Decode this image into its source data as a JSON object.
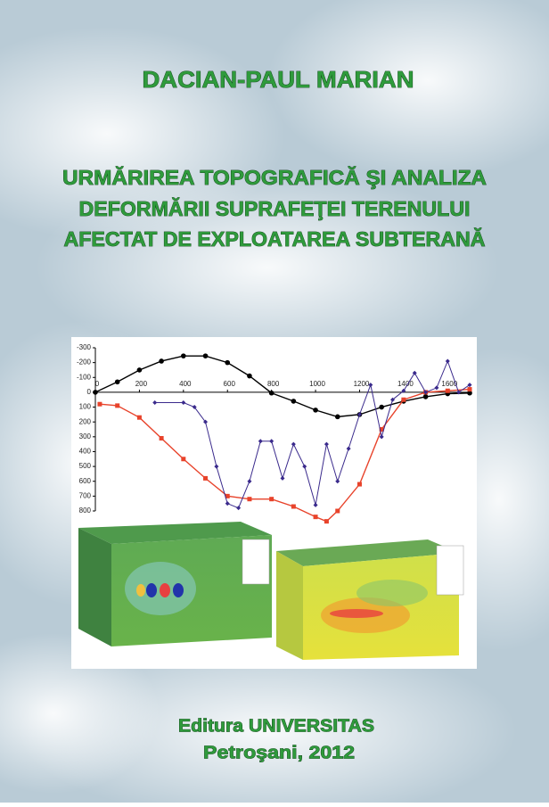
{
  "header": {
    "author": "DACIAN-PAUL MARIAN"
  },
  "title": {
    "lines": [
      "URMĂRIREA TOPOGRAFICĂ ŞI ANALIZA",
      "DEFORMĂRII SUPRAFEŢEI TERENULUI",
      "AFECTAT DE EXPLOATAREA SUBTERANĂ"
    ]
  },
  "chart_data": {
    "type": "line",
    "xlim": [
      0,
      1700
    ],
    "xticks": [
      0,
      200,
      400,
      600,
      800,
      1000,
      1200,
      1400,
      1600
    ],
    "ylim": [
      -300,
      800
    ],
    "yticks": [
      -300,
      -200,
      -100,
      0,
      100,
      200,
      300,
      400,
      500,
      600,
      700,
      800
    ],
    "series": [
      {
        "color": "#000000",
        "marker": "circle",
        "x": [
          0,
          100,
          200,
          300,
          400,
          500,
          600,
          700,
          800,
          900,
          1000,
          1100,
          1200,
          1300,
          1400,
          1500,
          1600,
          1700
        ],
        "values": [
          0,
          -70,
          -150,
          -210,
          -245,
          -245,
          -200,
          -110,
          5,
          60,
          120,
          165,
          150,
          100,
          60,
          30,
          10,
          5
        ]
      },
      {
        "color": "#e8432b",
        "marker": "square",
        "x": [
          20,
          100,
          200,
          300,
          400,
          500,
          600,
          700,
          800,
          900,
          1000,
          1050,
          1100,
          1200,
          1300,
          1400,
          1500,
          1600,
          1700
        ],
        "values": [
          80,
          90,
          170,
          310,
          450,
          580,
          700,
          720,
          720,
          770,
          840,
          870,
          800,
          620,
          250,
          50,
          0,
          -10,
          -20
        ]
      },
      {
        "color": "#3a2a8c",
        "marker": "diamond",
        "x": [
          270,
          400,
          450,
          500,
          550,
          600,
          650,
          700,
          750,
          800,
          850,
          900,
          950,
          1000,
          1050,
          1100,
          1150,
          1200,
          1250,
          1300,
          1350,
          1400,
          1450,
          1500,
          1550,
          1600,
          1650,
          1700
        ],
        "values": [
          70,
          70,
          100,
          200,
          500,
          750,
          780,
          600,
          330,
          330,
          580,
          350,
          500,
          760,
          350,
          600,
          380,
          150,
          -50,
          300,
          50,
          -10,
          -130,
          0,
          -30,
          -210,
          0,
          -50
        ]
      }
    ]
  },
  "footer": {
    "publisher": "Editura UNIVERSITAS",
    "place_year": "Petroşani, 2012"
  }
}
